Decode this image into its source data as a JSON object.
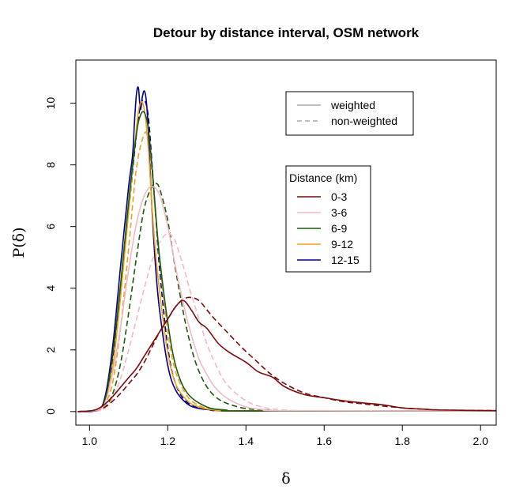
{
  "chart_data": {
    "type": "line",
    "title": "Detour by distance interval, OSM network",
    "xlabel": "δ",
    "ylabel": "P(δ)",
    "xlim": [
      0.965,
      2.04
    ],
    "ylim": [
      -0.44,
      11.4
    ],
    "xticks": [
      1.0,
      1.2,
      1.4,
      1.6,
      1.8,
      2.0
    ],
    "xtick_labels": [
      "1.0",
      "1.2",
      "1.4",
      "1.6",
      "1.8",
      "2.0"
    ],
    "yticks": [
      0,
      2,
      4,
      6,
      8,
      10
    ],
    "ytick_labels": [
      "0",
      "2",
      "4",
      "6",
      "8",
      "10"
    ],
    "line_legend": {
      "entries": [
        {
          "label": "weighted",
          "style": "solid",
          "color": "#aaaaaa"
        },
        {
          "label": "non-weighted",
          "style": "dashed",
          "color": "#aaaaaa"
        }
      ]
    },
    "distance_legend": {
      "title": "Distance (km)",
      "entries": [
        {
          "label": "0-3",
          "color": "#7b0a0a"
        },
        {
          "label": "3-6",
          "color": "#f4b8c8"
        },
        {
          "label": "6-9",
          "color": "#1a5c0a"
        },
        {
          "label": "9-12",
          "color": "#f0a020"
        },
        {
          "label": "12-15",
          "color": "#00008b"
        }
      ]
    },
    "series": [
      {
        "name": "12-15 weighted",
        "color": "#00008b",
        "style": "solid",
        "x": [
          0.97,
          1.02,
          1.04,
          1.06,
          1.08,
          1.1,
          1.11,
          1.115,
          1.12,
          1.125,
          1.13,
          1.135,
          1.14,
          1.145,
          1.15,
          1.16,
          1.17,
          1.18,
          1.2,
          1.22,
          1.25,
          1.28,
          1.32,
          1.4,
          2.04
        ],
        "y": [
          0,
          0.05,
          0.5,
          2.2,
          4.8,
          7.3,
          8.3,
          9.4,
          10.3,
          10.5,
          9.8,
          10.2,
          10.4,
          10.1,
          9.2,
          6.5,
          4.5,
          3.2,
          1.5,
          0.7,
          0.25,
          0.1,
          0.05,
          0.02,
          0.02
        ]
      },
      {
        "name": "12-15 non-weighted",
        "color": "#00008b",
        "style": "dashed",
        "x": [
          0.97,
          1.02,
          1.04,
          1.06,
          1.08,
          1.1,
          1.12,
          1.13,
          1.14,
          1.15,
          1.16,
          1.17,
          1.18,
          1.2,
          1.22,
          1.25,
          1.3,
          1.4,
          2.04
        ],
        "y": [
          0,
          0.05,
          0.4,
          1.8,
          4.0,
          6.5,
          9.0,
          9.9,
          10.1,
          9.6,
          8.0,
          6.2,
          4.5,
          2.1,
          0.9,
          0.3,
          0.08,
          0.02,
          0.02
        ]
      },
      {
        "name": "9-12 weighted",
        "color": "#f0a020",
        "style": "solid",
        "x": [
          0.97,
          1.02,
          1.04,
          1.06,
          1.08,
          1.1,
          1.12,
          1.13,
          1.14,
          1.15,
          1.16,
          1.17,
          1.18,
          1.2,
          1.22,
          1.25,
          1.28,
          1.32,
          1.4,
          2.04
        ],
        "y": [
          0,
          0.05,
          0.35,
          1.5,
          3.8,
          6.5,
          9.2,
          10.0,
          9.8,
          8.6,
          6.6,
          5.0,
          3.8,
          1.9,
          0.9,
          0.35,
          0.15,
          0.05,
          0.02,
          0.02
        ]
      },
      {
        "name": "9-12 non-weighted",
        "color": "#f0a020",
        "style": "dashed",
        "x": [
          0.97,
          1.02,
          1.04,
          1.06,
          1.08,
          1.1,
          1.12,
          1.14,
          1.15,
          1.16,
          1.17,
          1.18,
          1.2,
          1.22,
          1.25,
          1.28,
          1.32,
          1.4,
          2.04
        ],
        "y": [
          0,
          0.04,
          0.25,
          1.0,
          2.8,
          5.3,
          7.9,
          9.0,
          8.8,
          7.7,
          6.2,
          4.8,
          2.6,
          1.3,
          0.5,
          0.2,
          0.06,
          0.02,
          0.02
        ]
      },
      {
        "name": "6-9 weighted",
        "color": "#1a5c0a",
        "style": "solid",
        "x": [
          0.97,
          1.02,
          1.04,
          1.06,
          1.08,
          1.1,
          1.12,
          1.13,
          1.14,
          1.15,
          1.16,
          1.17,
          1.18,
          1.2,
          1.22,
          1.25,
          1.3,
          1.35,
          1.4,
          2.04
        ],
        "y": [
          0,
          0.05,
          0.4,
          1.9,
          4.2,
          6.8,
          9.0,
          9.6,
          9.7,
          9.2,
          7.9,
          6.3,
          4.9,
          2.9,
          1.5,
          0.6,
          0.15,
          0.05,
          0.02,
          0.02
        ]
      },
      {
        "name": "6-9 non-weighted",
        "color": "#1a5c0a",
        "style": "dashed",
        "x": [
          0.97,
          1.02,
          1.04,
          1.06,
          1.08,
          1.1,
          1.12,
          1.14,
          1.16,
          1.17,
          1.18,
          1.2,
          1.22,
          1.25,
          1.28,
          1.32,
          1.38,
          1.45,
          1.55,
          2.04
        ],
        "y": [
          0,
          0.03,
          0.15,
          0.6,
          1.6,
          3.2,
          5.0,
          6.6,
          7.3,
          7.4,
          7.2,
          6.2,
          4.6,
          2.6,
          1.3,
          0.5,
          0.15,
          0.05,
          0.02,
          0.02
        ]
      },
      {
        "name": "3-6 weighted",
        "color": "#f4b8c8",
        "style": "solid",
        "x": [
          0.97,
          1.02,
          1.04,
          1.06,
          1.08,
          1.1,
          1.12,
          1.14,
          1.16,
          1.18,
          1.2,
          1.22,
          1.24,
          1.26,
          1.28,
          1.3,
          1.32,
          1.35,
          1.4,
          1.45,
          1.5,
          2.04
        ],
        "y": [
          0,
          0.05,
          0.3,
          1.3,
          2.8,
          4.6,
          6.1,
          7.0,
          7.3,
          7.0,
          6.0,
          4.7,
          3.5,
          2.5,
          1.7,
          1.2,
          0.8,
          0.45,
          0.15,
          0.06,
          0.03,
          0.02
        ]
      },
      {
        "name": "3-6 non-weighted",
        "color": "#f4b8c8",
        "style": "dashed",
        "x": [
          0.97,
          1.02,
          1.04,
          1.06,
          1.08,
          1.1,
          1.12,
          1.14,
          1.16,
          1.18,
          1.2,
          1.21,
          1.22,
          1.24,
          1.26,
          1.28,
          1.3,
          1.32,
          1.35,
          1.4,
          1.45,
          1.5,
          1.6,
          2.04
        ],
        "y": [
          0,
          0.02,
          0.12,
          0.45,
          1.1,
          2.0,
          3.0,
          4.0,
          4.9,
          5.5,
          5.8,
          5.7,
          5.5,
          4.7,
          3.8,
          3.0,
          2.2,
          1.6,
          0.9,
          0.35,
          0.12,
          0.05,
          0.02,
          0.02
        ]
      },
      {
        "name": "0-3 weighted",
        "color": "#7b0a0a",
        "style": "solid",
        "x": [
          0.97,
          1.0,
          1.02,
          1.04,
          1.06,
          1.08,
          1.1,
          1.12,
          1.14,
          1.16,
          1.18,
          1.2,
          1.22,
          1.24,
          1.26,
          1.28,
          1.3,
          1.33,
          1.36,
          1.4,
          1.43,
          1.45,
          1.47,
          1.5,
          1.55,
          1.6,
          1.65,
          1.7,
          1.75,
          1.8,
          1.85,
          1.9,
          2.04
        ],
        "y": [
          0,
          0.02,
          0.08,
          0.25,
          0.5,
          0.8,
          1.1,
          1.4,
          1.8,
          2.2,
          2.6,
          3.0,
          3.4,
          3.6,
          3.3,
          2.9,
          2.7,
          2.2,
          1.9,
          1.6,
          1.3,
          1.2,
          1.1,
          0.8,
          0.55,
          0.45,
          0.35,
          0.28,
          0.22,
          0.12,
          0.08,
          0.05,
          0.03
        ]
      },
      {
        "name": "0-3 non-weighted",
        "color": "#7b0a0a",
        "style": "dashed",
        "x": [
          0.97,
          1.0,
          1.02,
          1.04,
          1.06,
          1.08,
          1.1,
          1.12,
          1.14,
          1.16,
          1.18,
          1.2,
          1.22,
          1.24,
          1.26,
          1.28,
          1.3,
          1.32,
          1.35,
          1.38,
          1.4,
          1.43,
          1.46,
          1.5,
          1.55,
          1.6,
          1.65,
          1.7,
          1.75,
          1.8,
          1.85,
          1.9,
          2.04
        ],
        "y": [
          0,
          0.02,
          0.06,
          0.15,
          0.35,
          0.6,
          0.9,
          1.2,
          1.6,
          2.1,
          2.6,
          3.0,
          3.4,
          3.65,
          3.7,
          3.6,
          3.3,
          3.0,
          2.6,
          2.2,
          1.95,
          1.6,
          1.25,
          0.9,
          0.6,
          0.45,
          0.32,
          0.25,
          0.18,
          0.12,
          0.08,
          0.05,
          0.03
        ]
      }
    ]
  }
}
